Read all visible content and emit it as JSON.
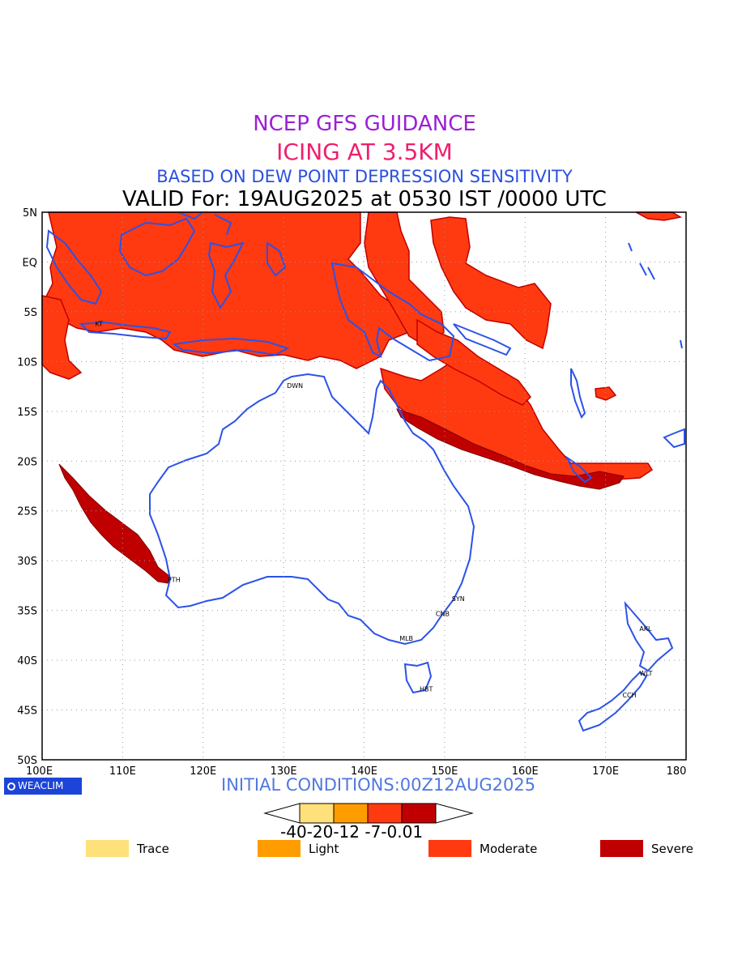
{
  "titles": {
    "line1": "NCEP GFS GUIDANCE",
    "line2": "ICING AT 3.5KM",
    "line3": "BASED ON DEW POINT DEPRESSION SENSITIVITY",
    "line4": "VALID For: 19AUG2025 at 0530 IST /0000 UTC"
  },
  "map": {
    "lat_labels": [
      "5N",
      "EQ",
      "5S",
      "10S",
      "15S",
      "20S",
      "25S",
      "30S",
      "35S",
      "40S",
      "45S",
      "50S"
    ],
    "lon_labels": [
      "100E",
      "110E",
      "120E",
      "130E",
      "140E",
      "150E",
      "160E",
      "170E",
      "180"
    ],
    "cities": [
      {
        "code": "KT",
        "lon": 107.2,
        "lat": -6.2
      },
      {
        "code": "DWN",
        "lon": 131.0,
        "lat": -12.4
      },
      {
        "code": "PTH",
        "lon": 116.2,
        "lat": -31.9
      },
      {
        "code": "SYN",
        "lon": 151.5,
        "lat": -33.8
      },
      {
        "code": "CNB",
        "lon": 149.5,
        "lat": -35.3
      },
      {
        "code": "MLB",
        "lon": 145.0,
        "lat": -37.8
      },
      {
        "code": "HBT",
        "lon": 147.5,
        "lat": -42.9
      },
      {
        "code": "AKL",
        "lon": 174.8,
        "lat": -36.8
      },
      {
        "code": "WLT",
        "lon": 174.8,
        "lat": -41.3
      },
      {
        "code": "CCH",
        "lon": 172.7,
        "lat": -43.5
      }
    ],
    "coast_color": "#2b52e8",
    "severity_colors": {
      "trace": "#fee17b",
      "light": "#ff9c00",
      "moderate": "#ff3a10",
      "severe": "#c00000"
    }
  },
  "footer": {
    "logo_text": "WEACLIM",
    "initial_conditions": "INITIAL CONDITIONS:00Z12AUG2025",
    "colorbar_ticks": "-40-20-12 -7-0.01",
    "legend": [
      {
        "label": "Trace",
        "color": "#fee17b"
      },
      {
        "label": "Light",
        "color": "#ff9c00"
      },
      {
        "label": "Moderate",
        "color": "#ff3a10"
      },
      {
        "label": "Severe",
        "color": "#c00000"
      }
    ]
  }
}
